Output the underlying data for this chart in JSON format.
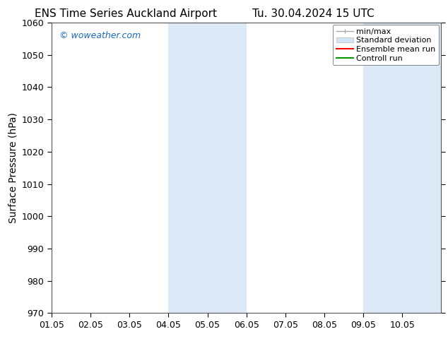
{
  "title_left": "ENS Time Series Auckland Airport",
  "title_right": "Tu. 30.04.2024 15 UTC",
  "ylabel": "Surface Pressure (hPa)",
  "xlim_left": 0,
  "xlim_right": 10,
  "ylim_bottom": 970,
  "ylim_top": 1060,
  "ytick_step": 10,
  "xtick_labels": [
    "01.05",
    "02.05",
    "03.05",
    "04.05",
    "05.05",
    "06.05",
    "07.05",
    "08.05",
    "09.05",
    "10.05"
  ],
  "xtick_positions": [
    0,
    1,
    2,
    3,
    4,
    5,
    6,
    7,
    8,
    9
  ],
  "shaded_regions": [
    {
      "xmin": 3.0,
      "xmax": 5.0,
      "color": "#dce9f7"
    },
    {
      "xmin": 8.0,
      "xmax": 10.0,
      "color": "#dce9f7"
    }
  ],
  "watermark_text": "© woweather.com",
  "watermark_color": "#1a6aba",
  "legend_labels": [
    "min/max",
    "Standard deviation",
    "Ensemble mean run",
    "Controll run"
  ],
  "legend_line_colors": [
    "#aaaaaa",
    "#bbbbbb",
    "#ff0000",
    "#009900"
  ],
  "legend_patch_color": "#d4e4f7",
  "background_color": "#ffffff",
  "plot_bg_color": "#ffffff",
  "spine_color": "#555555",
  "title_fontsize": 11,
  "ylabel_fontsize": 10,
  "tick_fontsize": 9,
  "legend_fontsize": 8,
  "watermark_fontsize": 9
}
